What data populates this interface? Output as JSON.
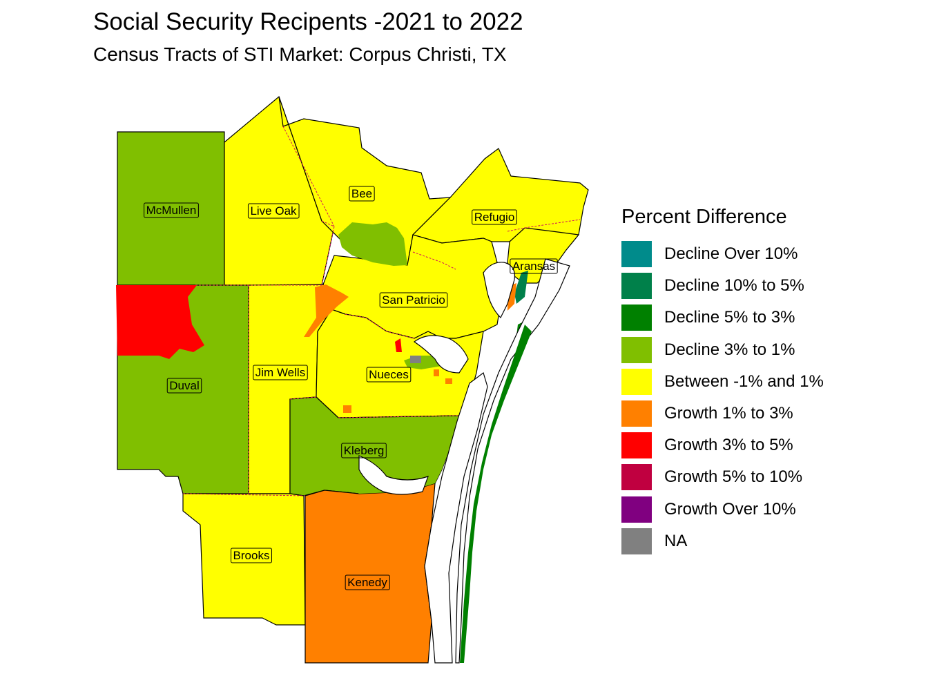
{
  "title": "Social Security Recipents -2021 to 2022",
  "subtitle": "Census Tracts of STI Market: Corpus Christi, TX",
  "legend": {
    "title": "Percent Difference",
    "items": [
      {
        "label": "Decline Over 10%",
        "color": "#008B8B"
      },
      {
        "label": "Decline 10% to 5%",
        "color": "#00804A"
      },
      {
        "label": "Decline 5% to 3%",
        "color": "#008000"
      },
      {
        "label": "Decline 3% to 1%",
        "color": "#80BF00"
      },
      {
        "label": "Between -1% and 1%",
        "color": "#FFFF00"
      },
      {
        "label": "Growth 1% to 3%",
        "color": "#FF8000"
      },
      {
        "label": "Growth 3% to 5%",
        "color": "#FF0000"
      },
      {
        "label": "Growth 5% to 10%",
        "color": "#C00040"
      },
      {
        "label": "Growth Over 10%",
        "color": "#800080"
      },
      {
        "label": "NA",
        "color": "#808080"
      }
    ]
  },
  "counties": [
    {
      "name": "McMullen",
      "category": "Decline 3% to 1%"
    },
    {
      "name": "Live Oak",
      "category": "Between -1% and 1%"
    },
    {
      "name": "Bee",
      "category": "Between -1% and 1%"
    },
    {
      "name": "Refugio",
      "category": "Between -1% and 1%"
    },
    {
      "name": "Aransas",
      "category": "Between -1% and 1%"
    },
    {
      "name": "San Patricio",
      "category": "Between -1% and 1%"
    },
    {
      "name": "Duval",
      "category": "Decline 3% to 1%"
    },
    {
      "name": "Jim Wells",
      "category": "Between -1% and 1%"
    },
    {
      "name": "Nueces",
      "category": "Between -1% and 1%"
    },
    {
      "name": "Kleberg",
      "category": "Decline 3% to 1%"
    },
    {
      "name": "Brooks",
      "category": "Between -1% and 1%"
    },
    {
      "name": "Kenedy",
      "category": "Growth 1% to 3%"
    }
  ],
  "colors": {
    "water": "#FFFFFF",
    "tract_border": "#D0105A",
    "outline": "#000000"
  }
}
